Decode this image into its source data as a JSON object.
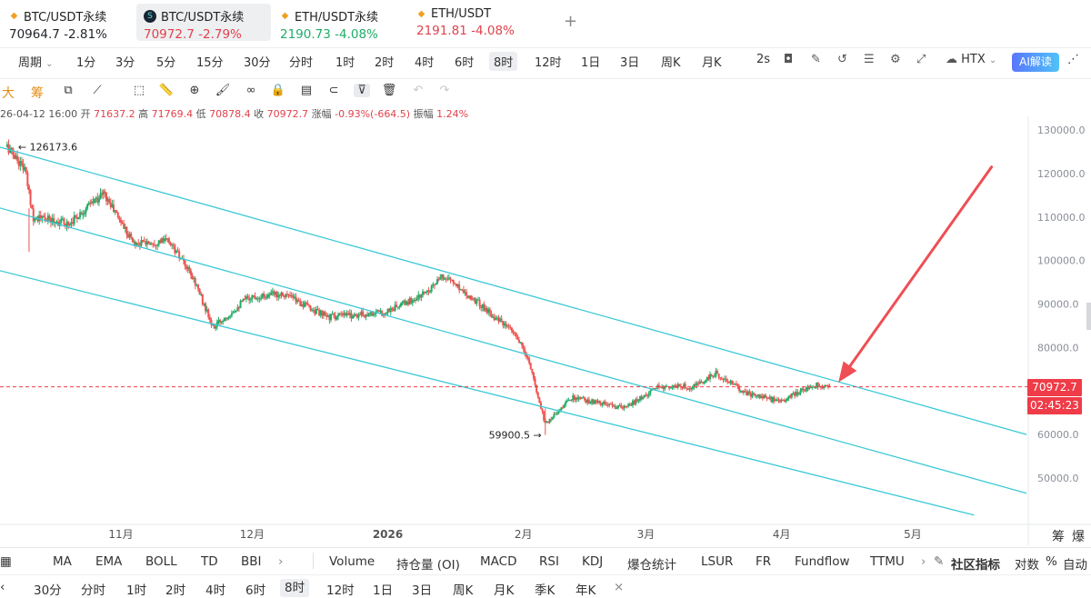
{
  "tickers": [
    {
      "name": "BTC/USDT永续",
      "price": "70964.7",
      "change": "-2.81%",
      "icon": "btc-coin-icon"
    },
    {
      "name": "BTC/USDT永续",
      "price": "70972.7",
      "change": "-2.79%",
      "icon": "htx-logo-icon"
    },
    {
      "name": "ETH/USDT永续",
      "price": "2190.73",
      "change": "-4.08%",
      "icon": "eth-coin-icon"
    },
    {
      "name": "ETH/USDT",
      "price": "2191.81",
      "change": "-4.08%",
      "icon": "eth-coin-icon"
    }
  ],
  "add_tab_label": "+",
  "timeframes": {
    "period_label": "周期",
    "items": [
      "1分",
      "3分",
      "5分",
      "15分",
      "30分",
      "分时",
      "1时",
      "2时",
      "4时",
      "6时",
      "8时",
      "12时",
      "1日",
      "3日",
      "周K",
      "月K"
    ],
    "selected": "8时",
    "interval": "2s",
    "exchange": "HTX",
    "ai_label": "AI解读"
  },
  "drawing_tools": {
    "left_labels": [
      "大",
      "筹"
    ]
  },
  "ohlc": {
    "datetime": "26-04-12 16:00",
    "open_label": "开",
    "open": "71637.2",
    "high_label": "高",
    "high": "71769.4",
    "low_label": "低",
    "low": "70878.4",
    "close_label": "收",
    "close": "70972.7",
    "change_label": "涨幅",
    "change": "-0.93%(-664.5)",
    "amp_label": "振幅",
    "amp": "1.24%"
  },
  "chart_data": {
    "type": "candlestick",
    "symbol": "BTC/USDT永续",
    "interval": "8时",
    "y_ticks": [
      "130000.0",
      "120000.0",
      "110000.0",
      "100000.0",
      "90000.0",
      "80000.0",
      "70000.0",
      "60000.0",
      "50000.0"
    ],
    "ylim": [
      42000,
      132500
    ],
    "x_ticks": [
      "11月",
      "12月",
      "2026",
      "2月",
      "3月",
      "4月",
      "5月"
    ],
    "trend_path": [
      {
        "date": "2025-10-06",
        "value": 126173.6
      },
      {
        "date": "2025-10-10",
        "value": 121000
      },
      {
        "date": "2025-10-12",
        "value": 110000
      },
      {
        "date": "2025-10-20",
        "value": 108500
      },
      {
        "date": "2025-10-28",
        "value": 115500
      },
      {
        "date": "2025-11-04",
        "value": 104000
      },
      {
        "date": "2025-11-12",
        "value": 104500
      },
      {
        "date": "2025-11-18",
        "value": 95000
      },
      {
        "date": "2025-11-22",
        "value": 84500
      },
      {
        "date": "2025-11-30",
        "value": 91500
      },
      {
        "date": "2025-12-08",
        "value": 92500
      },
      {
        "date": "2025-12-18",
        "value": 87000
      },
      {
        "date": "2025-12-31",
        "value": 88000
      },
      {
        "date": "2026-01-08",
        "value": 91500
      },
      {
        "date": "2026-01-14",
        "value": 96500
      },
      {
        "date": "2026-01-22",
        "value": 90000
      },
      {
        "date": "2026-01-30",
        "value": 83000
      },
      {
        "date": "2026-02-02",
        "value": 77500
      },
      {
        "date": "2026-02-06",
        "value": 62500
      },
      {
        "date": "2026-02-12",
        "value": 68500
      },
      {
        "date": "2026-02-24",
        "value": 66000
      },
      {
        "date": "2026-03-04",
        "value": 71000
      },
      {
        "date": "2026-03-12",
        "value": 71000
      },
      {
        "date": "2026-03-17",
        "value": 74000
      },
      {
        "date": "2026-03-24",
        "value": 69500
      },
      {
        "date": "2026-04-01",
        "value": 67500
      },
      {
        "date": "2026-04-08",
        "value": 71500
      },
      {
        "date": "2026-04-12",
        "value": 70972.7
      }
    ],
    "channel_lines": [
      {
        "name": "upper",
        "points": [
          {
            "date": "2025-10-01",
            "value": 127000
          },
          {
            "date": "2026-05-27",
            "value": 60000
          }
        ]
      },
      {
        "name": "middle",
        "points": [
          {
            "date": "2025-10-01",
            "value": 113000
          },
          {
            "date": "2026-05-27",
            "value": 46500
          }
        ]
      },
      {
        "name": "lower",
        "points": [
          {
            "date": "2025-10-01",
            "value": 98500
          },
          {
            "date": "2026-05-15",
            "value": 41500
          }
        ]
      }
    ],
    "annotations": [
      {
        "text": "126173.6",
        "date": "2025-10-06",
        "value": 126173.6,
        "kind": "high"
      },
      {
        "text": "59900.5",
        "date": "2026-02-06",
        "value": 59900.5,
        "kind": "low"
      }
    ],
    "current_price": {
      "value": 70972.7,
      "label": "70972.7",
      "countdown": "02:45:23"
    },
    "arrow": {
      "from": {
        "date": "2026-05-19",
        "value": 121500
      },
      "to": {
        "date": "2026-04-14",
        "value": 72000
      },
      "color": "#ef4e55"
    },
    "colors": {
      "up": "#1fad6a",
      "down": "#ef5350",
      "channel": "#3cc9d6",
      "price_tag": "#ef3c48"
    },
    "grid": false
  },
  "indicators": {
    "items": [
      "MA",
      "EMA",
      "BOLL",
      "TD",
      "BBI",
      "Volume",
      "持仓量 (OI)",
      "MACD",
      "RSI",
      "KDJ",
      "爆仓统计",
      "LSUR",
      "FR",
      "Fundflow",
      "TTMU"
    ],
    "community_label": "社区指标",
    "log_label": "对数",
    "pct_label": "%",
    "auto_label": "自动",
    "side_labels": [
      "筹",
      "爆"
    ]
  },
  "bottom_timeframes": {
    "items": [
      "30分",
      "分时",
      "1时",
      "2时",
      "4时",
      "6时",
      "8时",
      "12时",
      "1日",
      "3日",
      "周K",
      "月K",
      "季K",
      "年K"
    ],
    "selected": "8时",
    "close_label": "×"
  }
}
